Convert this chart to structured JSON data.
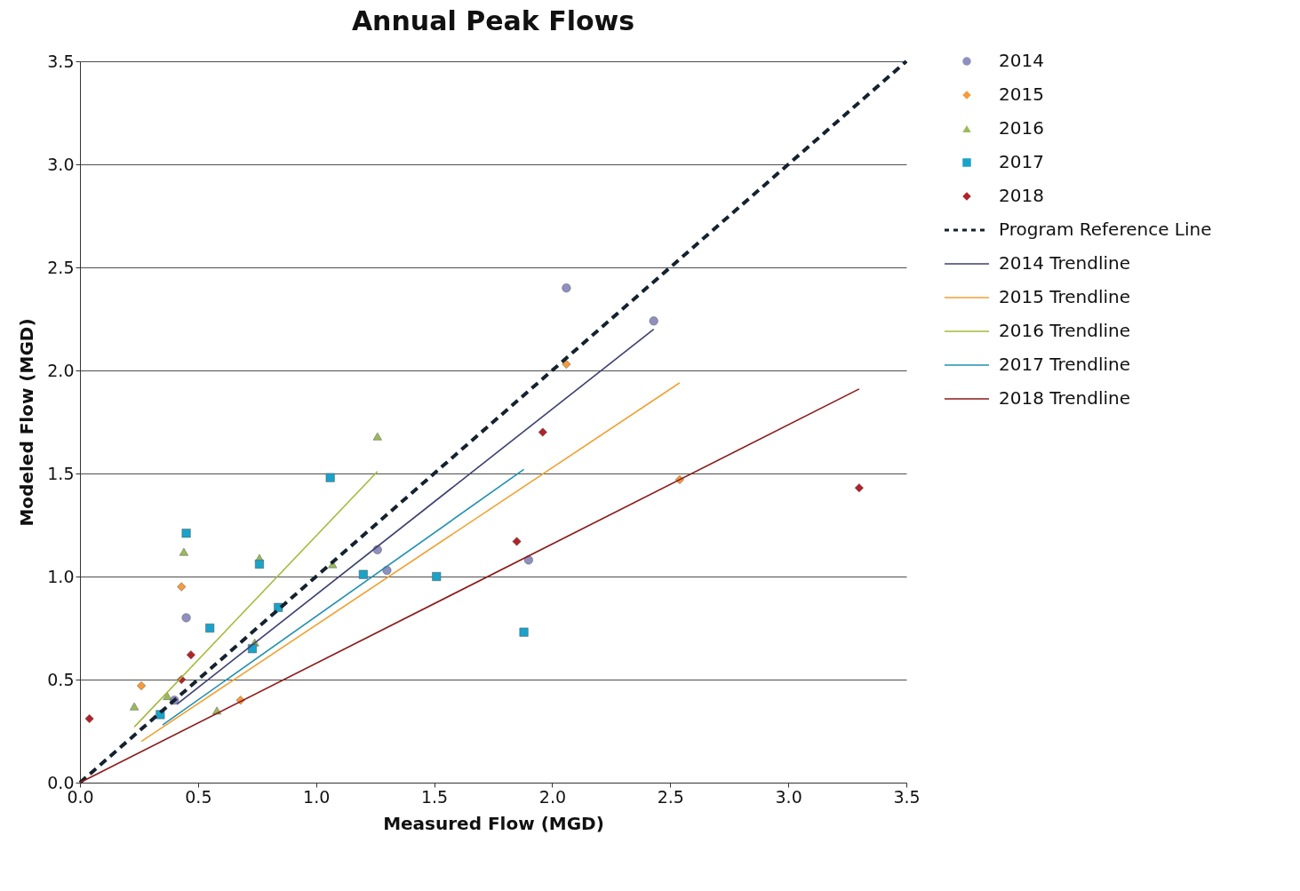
{
  "chart_data": {
    "type": "scatter",
    "title": "Annual Peak Flows",
    "xlabel": "Measured Flow (MGD)",
    "ylabel": "Modeled Flow (MGD)",
    "xlim": [
      0,
      3.5
    ],
    "ylim": [
      0,
      3.5
    ],
    "xticks": [
      {
        "value": 0,
        "label": "0.0"
      },
      {
        "value": 0.5,
        "label": "0.5"
      },
      {
        "value": 1,
        "label": "1.0"
      },
      {
        "value": 1.5,
        "label": "1.5"
      },
      {
        "value": 2,
        "label": "2.0"
      },
      {
        "value": 2.5,
        "label": "2.5"
      },
      {
        "value": 3,
        "label": "3.0"
      },
      {
        "value": 3.5,
        "label": "3.5"
      }
    ],
    "yticks": [
      {
        "value": 0,
        "label": "0.0"
      },
      {
        "value": 0.5,
        "label": "0.5"
      },
      {
        "value": 1,
        "label": "1.0"
      },
      {
        "value": 1.5,
        "label": "1.5"
      },
      {
        "value": 2,
        "label": "2.0"
      },
      {
        "value": 2.5,
        "label": "2.5"
      },
      {
        "value": 3,
        "label": "3.0"
      },
      {
        "value": 3.5,
        "label": "3.5"
      }
    ],
    "grid": "y",
    "legend": "right",
    "series": [
      {
        "name": "2014",
        "marker": "circle",
        "color": "#8f8fc0",
        "x": [
          2.06,
          2.43,
          1.9,
          1.26,
          1.3,
          0.45,
          0.4
        ],
        "values": [
          2.4,
          2.24,
          1.08,
          1.13,
          1.03,
          0.8,
          0.4
        ]
      },
      {
        "name": "2015",
        "marker": "diamond",
        "color": "#f79a3a",
        "x": [
          2.06,
          2.54,
          0.43,
          0.26,
          0.68
        ],
        "values": [
          2.03,
          1.47,
          0.95,
          0.47,
          0.4
        ]
      },
      {
        "name": "2016",
        "marker": "triangle",
        "color": "#9bbb59",
        "x": [
          1.26,
          0.44,
          0.76,
          1.07,
          0.23,
          0.37,
          0.58,
          0.74
        ],
        "values": [
          1.68,
          1.12,
          1.09,
          1.06,
          0.37,
          0.42,
          0.35,
          0.68
        ]
      },
      {
        "name": "2017",
        "marker": "square",
        "color": "#1aa3c8",
        "x": [
          1.06,
          0.45,
          0.76,
          1.2,
          1.51,
          0.84,
          0.55,
          0.73,
          0.34,
          1.88
        ],
        "values": [
          1.48,
          1.21,
          1.06,
          1.01,
          1.0,
          0.85,
          0.75,
          0.65,
          0.33,
          0.73
        ]
      },
      {
        "name": "2018",
        "marker": "diamond",
        "color": "#b0232a",
        "x": [
          0.04,
          1.96,
          1.85,
          3.3,
          0.47,
          0.43
        ],
        "values": [
          0.31,
          1.7,
          1.17,
          1.43,
          0.62,
          0.5
        ]
      },
      {
        "name": "Program Reference Line",
        "type": "line",
        "line_style": "dashed",
        "color": "#13222e",
        "x": [
          0,
          3.5
        ],
        "values": [
          0,
          3.5
        ]
      },
      {
        "name": "2014 Trendline",
        "type": "line",
        "line_style": "solid",
        "color": "#3c3f70",
        "x": [
          0.41,
          2.43
        ],
        "values": [
          0.38,
          2.2
        ]
      },
      {
        "name": "2015 Trendline",
        "type": "line",
        "line_style": "solid",
        "color": "#f0a030",
        "x": [
          0.26,
          2.54
        ],
        "values": [
          0.2,
          1.94
        ]
      },
      {
        "name": "2016 Trendline",
        "type": "line",
        "line_style": "solid",
        "color": "#a6b83a",
        "x": [
          0.23,
          1.26
        ],
        "values": [
          0.27,
          1.51
        ]
      },
      {
        "name": "2017 Trendline",
        "type": "line",
        "line_style": "solid",
        "color": "#1f8fb0",
        "x": [
          0.35,
          1.88
        ],
        "values": [
          0.28,
          1.52
        ]
      },
      {
        "name": "2018 Trendline",
        "type": "line",
        "line_style": "solid",
        "color": "#8b1a1a",
        "x": [
          0,
          3.3
        ],
        "values": [
          0,
          1.91
        ]
      }
    ]
  }
}
